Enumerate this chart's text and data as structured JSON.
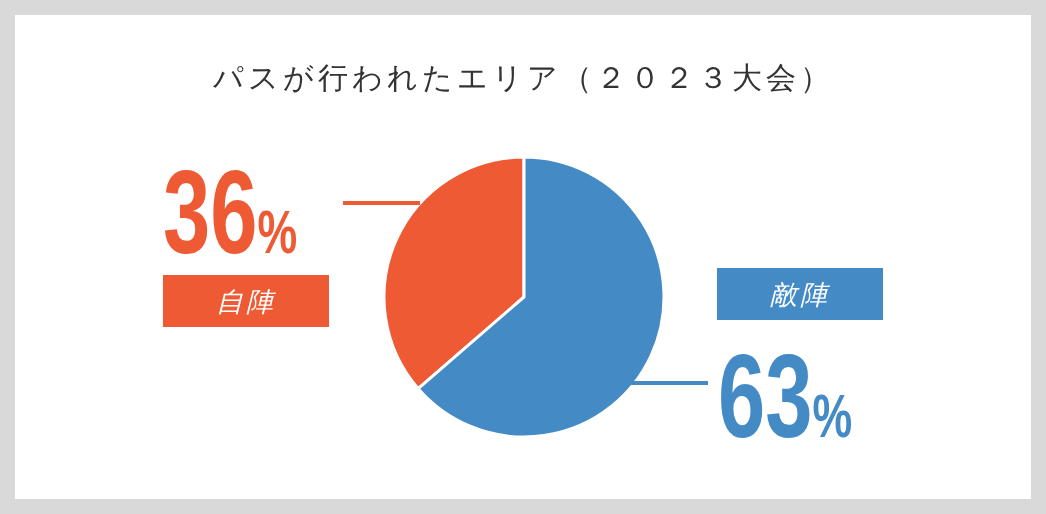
{
  "chart_data": {
    "type": "pie",
    "title": "パスが行われたエリア（２０２３大会）",
    "categories": [
      "自陣",
      "敵陣"
    ],
    "values": [
      36,
      63
    ],
    "value_labels": [
      "36%",
      "63%"
    ],
    "colors": [
      "#ee5a33",
      "#448bc6"
    ]
  }
}
